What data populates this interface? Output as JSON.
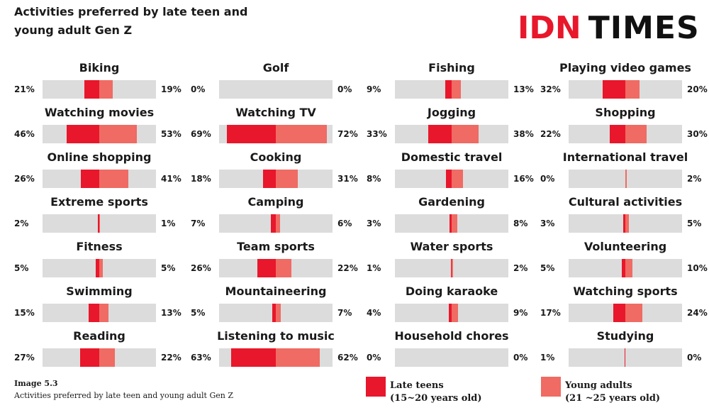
{
  "header": {
    "title": "Activities preferred by late teen and young adult Gen Z",
    "logo": {
      "part1": "IDN",
      "part2": "TIMES",
      "color_idn": "#e8172b",
      "color_times": "#111111"
    }
  },
  "caption": {
    "label": "Image 5.3",
    "text": "Activities preferred by late teen and young adult Gen Z"
  },
  "legend": {
    "late_teens": {
      "line1": "Late teens",
      "line2": "(15~20 years old)",
      "color": "#e8172b"
    },
    "young_adults": {
      "line1": "Young adults",
      "line2": "(21 ~25 years old)",
      "color": "#ef6b63"
    }
  },
  "chart_data": {
    "type": "bar",
    "orientation": "horizontal-butterfly",
    "title": "Activities preferred by late teen and young adult Gen Z",
    "unit": "%",
    "series": [
      {
        "name": "Late teens (15~20 years old)",
        "color": "#e8172b"
      },
      {
        "name": "Young adults (21 ~25 years old)",
        "color": "#ef6b63"
      }
    ],
    "scale_max_percent": 160,
    "categories": [
      {
        "name": "Biking",
        "late_teens": 21,
        "young_adults": 19
      },
      {
        "name": "Golf",
        "late_teens": 0,
        "young_adults": 0
      },
      {
        "name": "Fishing",
        "late_teens": 9,
        "young_adults": 13
      },
      {
        "name": "Playing video games",
        "late_teens": 32,
        "young_adults": 20
      },
      {
        "name": "Watching movies",
        "late_teens": 46,
        "young_adults": 53
      },
      {
        "name": "Watching TV",
        "late_teens": 69,
        "young_adults": 72
      },
      {
        "name": "Jogging",
        "late_teens": 33,
        "young_adults": 38
      },
      {
        "name": "Shopping",
        "late_teens": 22,
        "young_adults": 30
      },
      {
        "name": "Online shopping",
        "late_teens": 26,
        "young_adults": 41
      },
      {
        "name": "Cooking",
        "late_teens": 18,
        "young_adults": 31
      },
      {
        "name": "Domestic travel",
        "late_teens": 8,
        "young_adults": 16
      },
      {
        "name": "International travel",
        "late_teens": 0,
        "young_adults": 2
      },
      {
        "name": "Extreme sports",
        "late_teens": 2,
        "young_adults": 1
      },
      {
        "name": "Camping",
        "late_teens": 7,
        "young_adults": 6
      },
      {
        "name": "Gardening",
        "late_teens": 3,
        "young_adults": 8
      },
      {
        "name": "Cultural activities",
        "late_teens": 3,
        "young_adults": 5
      },
      {
        "name": "Fitness",
        "late_teens": 5,
        "young_adults": 5
      },
      {
        "name": "Team sports",
        "late_teens": 26,
        "young_adults": 22
      },
      {
        "name": "Water sports",
        "late_teens": 1,
        "young_adults": 2
      },
      {
        "name": "Volunteering",
        "late_teens": 5,
        "young_adults": 10
      },
      {
        "name": "Swimming",
        "late_teens": 15,
        "young_adults": 13
      },
      {
        "name": "Mountaineering",
        "late_teens": 5,
        "young_adults": 7
      },
      {
        "name": "Doing karaoke",
        "late_teens": 4,
        "young_adults": 9
      },
      {
        "name": "Watching sports",
        "late_teens": 17,
        "young_adults": 24
      },
      {
        "name": "Reading",
        "late_teens": 27,
        "young_adults": 22
      },
      {
        "name": "Listening to music",
        "late_teens": 63,
        "young_adults": 62
      },
      {
        "name": "Household chores",
        "late_teens": 0,
        "young_adults": 0
      },
      {
        "name": "Studying",
        "late_teens": 1,
        "young_adults": 0
      }
    ]
  }
}
